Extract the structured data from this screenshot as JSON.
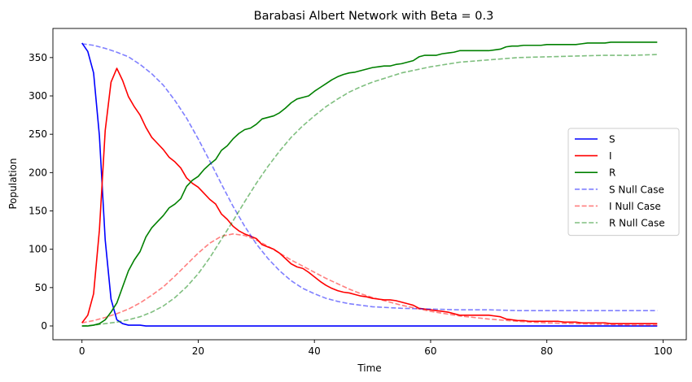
{
  "chart_data": {
    "type": "line",
    "title": "Barabasi Albert Network with Beta = 0.3",
    "xlabel": "Time",
    "ylabel": "Population",
    "xlim": [
      -5,
      104
    ],
    "ylim": [
      -18,
      388
    ],
    "xticks": [
      0,
      20,
      40,
      60,
      80,
      100
    ],
    "yticks": [
      0,
      50,
      100,
      150,
      200,
      250,
      300,
      350
    ],
    "grid": false,
    "legend_position": "center-right",
    "series": [
      {
        "name": "S",
        "color": "#0000ff",
        "dash": "solid",
        "opacity": 1,
        "x": [
          0,
          1,
          2,
          3,
          4,
          5,
          6,
          7,
          8,
          9,
          10,
          11,
          12,
          15,
          20,
          30,
          40,
          50,
          60,
          70,
          80,
          90,
          99
        ],
        "y": [
          369,
          358,
          330,
          248,
          112,
          35,
          8,
          3,
          1,
          1,
          1,
          0,
          0,
          0,
          0,
          0,
          0,
          0,
          0,
          0,
          0,
          0,
          0
        ]
      },
      {
        "name": "I",
        "color": "#ff0000",
        "dash": "solid",
        "opacity": 1,
        "x": [
          0,
          1,
          2,
          3,
          4,
          5,
          6,
          7,
          8,
          9,
          10,
          11,
          12,
          13,
          14,
          15,
          16,
          17,
          18,
          19,
          20,
          21,
          22,
          23,
          24,
          25,
          26,
          27,
          28,
          29,
          30,
          31,
          32,
          33,
          34,
          35,
          36,
          37,
          38,
          39,
          40,
          41,
          42,
          43,
          44,
          45,
          46,
          47,
          48,
          49,
          50,
          51,
          52,
          53,
          54,
          55,
          56,
          57,
          58,
          59,
          60,
          61,
          62,
          63,
          64,
          65,
          66,
          67,
          68,
          69,
          70,
          71,
          72,
          73,
          74,
          75,
          76,
          77,
          78,
          79,
          80,
          81,
          82,
          83,
          84,
          85,
          86,
          87,
          88,
          89,
          90,
          91,
          92,
          93,
          94,
          95,
          96,
          97,
          98,
          99
        ],
        "y": [
          4,
          14,
          42,
          125,
          255,
          318,
          336,
          320,
          299,
          286,
          275,
          259,
          246,
          238,
          230,
          220,
          214,
          206,
          193,
          186,
          181,
          173,
          165,
          159,
          146,
          139,
          130,
          124,
          120,
          117,
          114,
          106,
          103,
          100,
          95,
          88,
          81,
          77,
          75,
          70,
          64,
          58,
          53,
          49,
          46,
          44,
          43,
          41,
          39,
          38,
          36,
          35,
          34,
          34,
          33,
          31,
          29,
          27,
          23,
          22,
          21,
          20,
          19,
          18,
          16,
          14,
          14,
          14,
          14,
          14,
          14,
          13,
          12,
          9,
          8,
          7,
          7,
          6,
          6,
          6,
          6,
          6,
          6,
          5,
          5,
          5,
          4,
          4,
          4,
          4,
          4,
          3,
          3,
          3,
          3,
          3,
          3,
          3,
          3,
          3
        ]
      },
      {
        "name": "R",
        "color": "#008000",
        "dash": "solid",
        "opacity": 1,
        "x": [
          0,
          1,
          2,
          3,
          4,
          5,
          6,
          7,
          8,
          9,
          10,
          11,
          12,
          13,
          14,
          15,
          16,
          17,
          18,
          19,
          20,
          21,
          22,
          23,
          24,
          25,
          26,
          27,
          28,
          29,
          30,
          31,
          32,
          33,
          34,
          35,
          36,
          37,
          38,
          39,
          40,
          41,
          42,
          43,
          44,
          45,
          46,
          47,
          48,
          49,
          50,
          51,
          52,
          53,
          54,
          55,
          56,
          57,
          58,
          59,
          60,
          61,
          62,
          63,
          64,
          65,
          66,
          67,
          68,
          69,
          70,
          71,
          72,
          73,
          74,
          75,
          76,
          77,
          78,
          79,
          80,
          81,
          82,
          83,
          84,
          85,
          86,
          87,
          88,
          89,
          90,
          91,
          92,
          93,
          94,
          95,
          96,
          97,
          98,
          99
        ],
        "y": [
          0,
          0,
          1,
          3,
          8,
          18,
          30,
          51,
          72,
          86,
          97,
          116,
          128,
          136,
          144,
          154,
          159,
          166,
          182,
          190,
          195,
          204,
          211,
          217,
          229,
          235,
          244,
          251,
          256,
          258,
          263,
          270,
          272,
          274,
          278,
          284,
          291,
          296,
          298,
          300,
          306,
          311,
          316,
          321,
          325,
          328,
          330,
          331,
          333,
          335,
          337,
          338,
          339,
          339,
          341,
          342,
          344,
          346,
          351,
          353,
          353,
          353,
          355,
          356,
          357,
          359,
          359,
          359,
          359,
          359,
          359,
          360,
          361,
          364,
          365,
          365,
          366,
          366,
          366,
          366,
          367,
          367,
          367,
          367,
          367,
          367,
          368,
          369,
          369,
          369,
          369,
          370,
          370,
          370,
          370,
          370,
          370,
          370,
          370,
          370
        ]
      },
      {
        "name": "S Null Case",
        "color": "#0000ff",
        "dash": "dashed",
        "opacity": 0.5,
        "x": [
          0,
          2,
          4,
          6,
          8,
          10,
          12,
          14,
          16,
          18,
          20,
          22,
          24,
          26,
          28,
          30,
          32,
          34,
          36,
          38,
          40,
          42,
          44,
          46,
          48,
          50,
          55,
          60,
          65,
          70,
          75,
          80,
          85,
          90,
          95,
          99
        ],
        "y": [
          368,
          366,
          362,
          357,
          351,
          341,
          329,
          314,
          294,
          271,
          244,
          215,
          185,
          156,
          130,
          107,
          88,
          72,
          59,
          49,
          42,
          36,
          32,
          29,
          27,
          25,
          23,
          22,
          21,
          21,
          20,
          20,
          20,
          20,
          20,
          20
        ]
      },
      {
        "name": "I Null Case",
        "color": "#ff0000",
        "dash": "dashed",
        "opacity": 0.5,
        "x": [
          0,
          2,
          4,
          6,
          8,
          10,
          12,
          14,
          16,
          18,
          20,
          22,
          24,
          26,
          28,
          30,
          32,
          34,
          36,
          38,
          40,
          42,
          44,
          46,
          48,
          50,
          55,
          60,
          65,
          70,
          75,
          80,
          85,
          90,
          95,
          99
        ],
        "y": [
          4,
          7,
          11,
          16,
          22,
          30,
          40,
          51,
          65,
          80,
          95,
          108,
          117,
          120,
          118,
          112,
          104,
          95,
          86,
          78,
          70,
          62,
          55,
          48,
          42,
          37,
          27,
          19,
          13,
          9,
          6,
          4,
          3,
          2,
          1,
          1
        ]
      },
      {
        "name": "R Null Case",
        "color": "#008000",
        "dash": "dashed",
        "opacity": 0.5,
        "x": [
          0,
          2,
          4,
          6,
          8,
          10,
          12,
          14,
          16,
          18,
          20,
          22,
          24,
          26,
          28,
          30,
          32,
          34,
          36,
          38,
          40,
          42,
          44,
          46,
          48,
          50,
          55,
          60,
          65,
          70,
          75,
          80,
          85,
          90,
          95,
          99
        ],
        "y": [
          0,
          1,
          3,
          5,
          8,
          12,
          18,
          26,
          37,
          51,
          68,
          89,
          113,
          137,
          162,
          186,
          208,
          228,
          246,
          261,
          274,
          286,
          296,
          305,
          312,
          318,
          330,
          338,
          344,
          347,
          350,
          351,
          352,
          353,
          353,
          354
        ]
      }
    ]
  }
}
